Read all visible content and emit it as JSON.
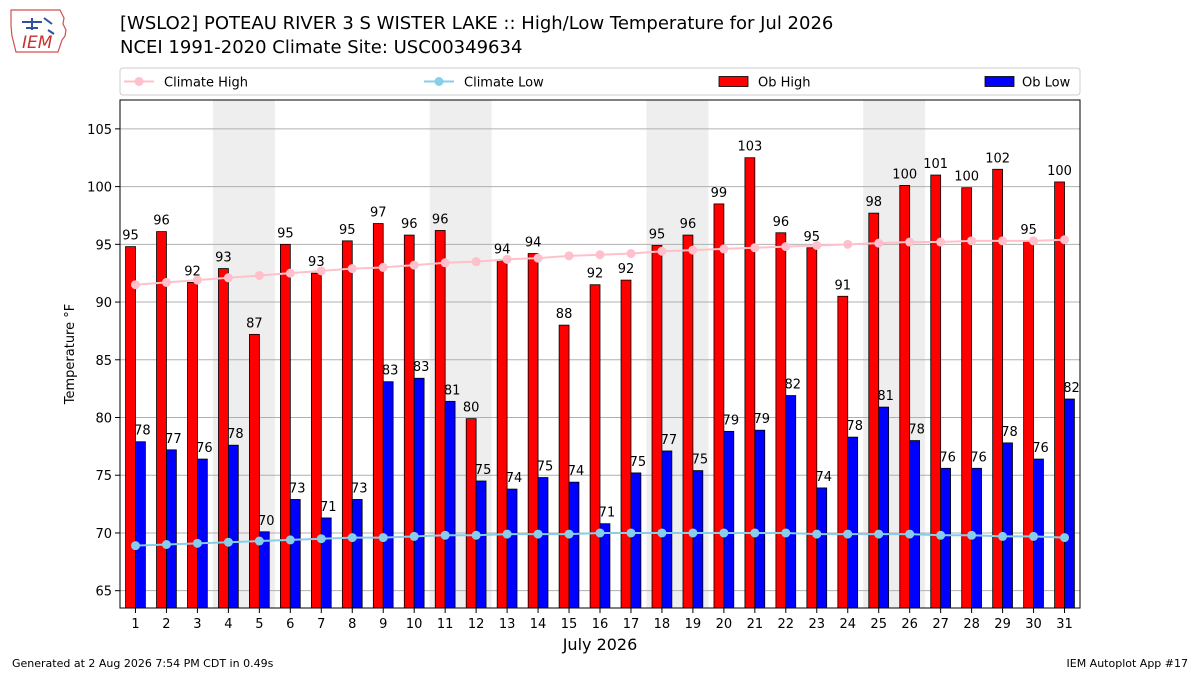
{
  "header": {
    "title": "[WSLO2] POTEAU RIVER 3 S WISTER LAKE :: High/Low Temperature for Jul 2026",
    "subtitle": "NCEI 1991-2020 Climate Site: USC00349634"
  },
  "logo": {
    "text": "IEM",
    "icon": "iem-logo-icon"
  },
  "footer": {
    "left": "Generated at 2 Aug 2026 7:54 PM CDT in 0.49s",
    "right": "IEM Autoplot App #17"
  },
  "colors": {
    "ob_high": "#ff0000",
    "ob_low": "#0000ff",
    "climate_high": "#ffc0cb",
    "climate_low": "#87ceeb",
    "weekend_shade": "#eeeeee",
    "grid": "#b0b0b0"
  },
  "chart_data": {
    "type": "bar",
    "xlabel": "July 2026",
    "ylabel": "Temperature °F",
    "ylim": [
      63.5,
      107.5
    ],
    "yticks": [
      65,
      70,
      75,
      80,
      85,
      90,
      95,
      100,
      105
    ],
    "grid": "horizontal",
    "legend_placement": "top",
    "shaded_days": [
      [
        4,
        5
      ],
      [
        11,
        12
      ],
      [
        18,
        19
      ],
      [
        25,
        26
      ]
    ],
    "categories": [
      "1",
      "2",
      "3",
      "4",
      "5",
      "6",
      "7",
      "8",
      "9",
      "10",
      "11",
      "12",
      "13",
      "14",
      "15",
      "16",
      "17",
      "18",
      "19",
      "20",
      "21",
      "22",
      "23",
      "24",
      "25",
      "26",
      "27",
      "28",
      "29",
      "30",
      "31"
    ],
    "series": [
      {
        "name": "Ob High",
        "kind": "bar",
        "values": [
          94.8,
          96.1,
          91.7,
          92.9,
          87.2,
          95.0,
          92.5,
          95.3,
          96.8,
          95.8,
          96.2,
          79.9,
          93.6,
          94.2,
          88.0,
          91.5,
          91.9,
          94.9,
          95.8,
          98.5,
          102.5,
          96.0,
          94.7,
          90.5,
          97.7,
          100.1,
          101.0,
          99.9,
          101.5,
          95.3,
          100.4
        ],
        "labels": [
          "95",
          "96",
          "92",
          "93",
          "87",
          "95",
          "93",
          "95",
          "97",
          "96",
          "96",
          "80",
          "94",
          "94",
          "88",
          "92",
          "92",
          "95",
          "96",
          "99",
          "103",
          "96",
          "95",
          "91",
          "98",
          "100",
          "101",
          "100",
          "102",
          "95",
          "100"
        ]
      },
      {
        "name": "Ob Low",
        "kind": "bar",
        "values": [
          77.9,
          77.2,
          76.4,
          77.6,
          70.1,
          72.9,
          71.3,
          72.9,
          83.1,
          83.4,
          81.4,
          74.5,
          73.8,
          74.8,
          74.4,
          70.8,
          75.2,
          77.1,
          75.4,
          78.8,
          78.9,
          81.9,
          73.9,
          78.3,
          80.9,
          78.0,
          75.6,
          75.6,
          77.8,
          76.4,
          81.6
        ],
        "labels": [
          "78",
          "77",
          "76",
          "78",
          "70",
          "73",
          "71",
          "73",
          "83",
          "83",
          "81",
          "75",
          "74",
          "75",
          "74",
          "71",
          "75",
          "77",
          "75",
          "79",
          "79",
          "82",
          "74",
          "78",
          "81",
          "78",
          "76",
          "76",
          "78",
          "76",
          "82"
        ]
      },
      {
        "name": "Climate High",
        "kind": "line",
        "values": [
          91.5,
          91.7,
          91.9,
          92.1,
          92.3,
          92.5,
          92.7,
          92.9,
          93.0,
          93.2,
          93.4,
          93.5,
          93.7,
          93.8,
          94.0,
          94.1,
          94.2,
          94.4,
          94.5,
          94.6,
          94.7,
          94.8,
          94.9,
          95.0,
          95.1,
          95.2,
          95.2,
          95.3,
          95.3,
          95.3,
          95.4
        ]
      },
      {
        "name": "Climate Low",
        "kind": "line",
        "values": [
          68.9,
          69.0,
          69.1,
          69.2,
          69.3,
          69.4,
          69.5,
          69.6,
          69.6,
          69.7,
          69.8,
          69.8,
          69.9,
          69.9,
          69.9,
          70.0,
          70.0,
          70.0,
          70.0,
          70.0,
          70.0,
          70.0,
          69.9,
          69.9,
          69.9,
          69.9,
          69.8,
          69.8,
          69.7,
          69.7,
          69.6
        ]
      }
    ]
  }
}
